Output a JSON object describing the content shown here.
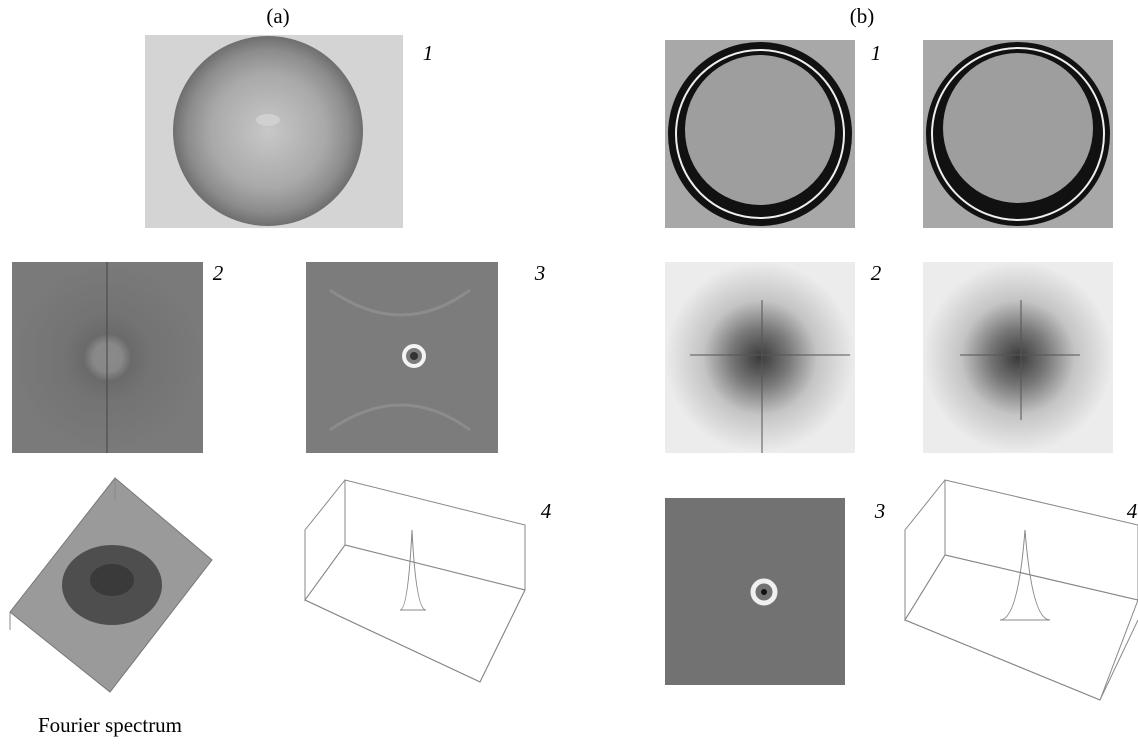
{
  "panel_a": {
    "label": "(a)",
    "numbers": [
      "1",
      "2",
      "3",
      "4"
    ],
    "caption": "Fourier spectrum"
  },
  "panel_b": {
    "label": "(b)",
    "numbers": [
      "1",
      "2",
      "3",
      "4"
    ]
  }
}
